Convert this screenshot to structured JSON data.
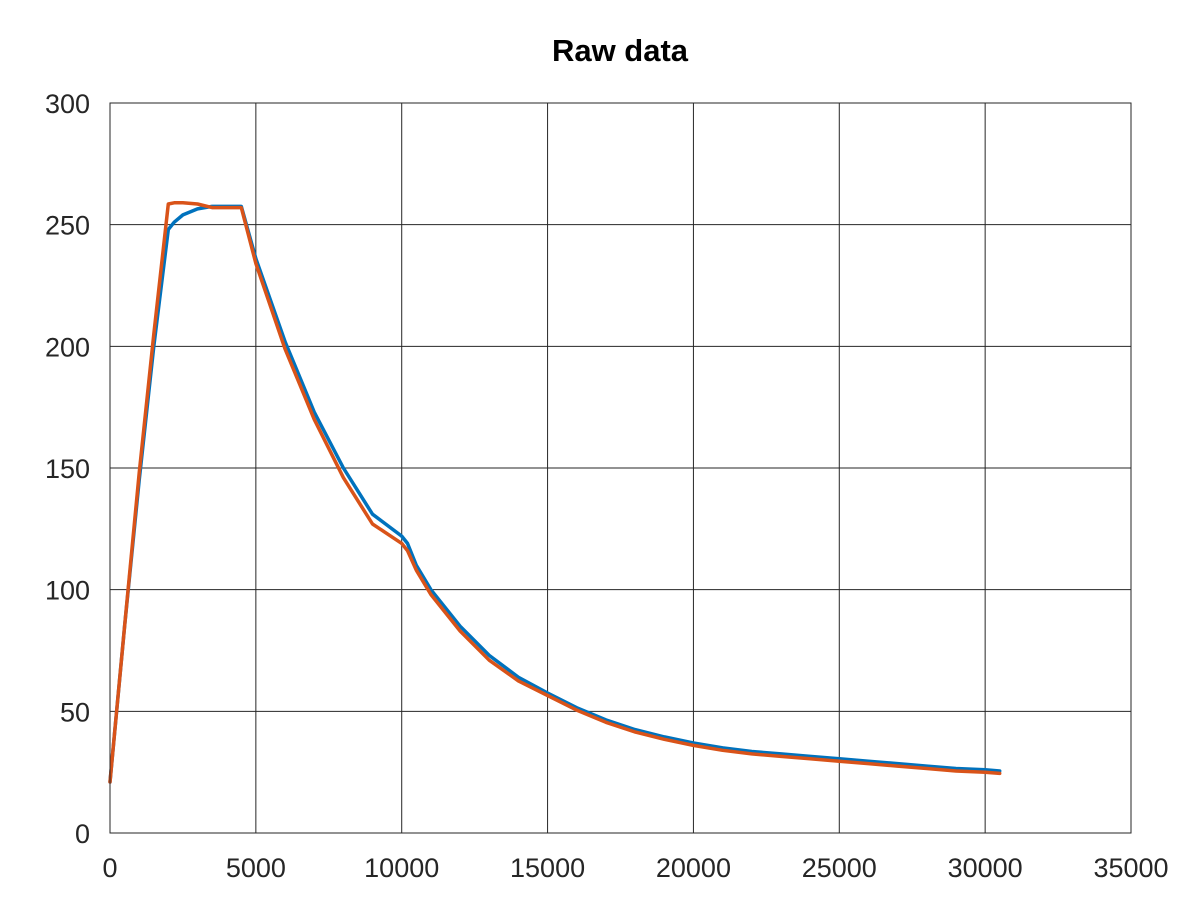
{
  "chart_data": {
    "type": "line",
    "title": "Raw data",
    "xlabel": "",
    "ylabel": "",
    "xlim": [
      0,
      35000
    ],
    "ylim": [
      0,
      300
    ],
    "x_ticks": [
      0,
      5000,
      10000,
      15000,
      20000,
      25000,
      30000,
      35000
    ],
    "y_ticks": [
      0,
      50,
      100,
      150,
      200,
      250,
      300
    ],
    "grid": true,
    "legend": "none",
    "series": [
      {
        "color": "#0072BD",
        "x": [
          0,
          500,
          1000,
          1500,
          2000,
          2200,
          2500,
          3000,
          3500,
          4000,
          4500,
          5000,
          6000,
          7000,
          8000,
          9000,
          10000,
          10200,
          10500,
          11000,
          12000,
          13000,
          14000,
          15000,
          16000,
          17000,
          18000,
          19000,
          20000,
          21000,
          22000,
          23000,
          24000,
          25000,
          26000,
          27000,
          28000,
          29000,
          30000,
          30500
        ],
        "y": [
          21,
          85,
          145,
          200,
          248,
          251,
          254,
          256.5,
          257.5,
          257.5,
          257.5,
          236,
          202,
          173,
          150,
          131,
          122,
          119,
          110,
          100,
          85,
          73,
          64,
          57.5,
          51.5,
          46.5,
          42.5,
          39.5,
          37,
          35,
          33.5,
          32.5,
          31.5,
          30.5,
          29.5,
          28.5,
          27.5,
          26.5,
          26,
          25.5
        ]
      },
      {
        "color": "#D95319",
        "x": [
          0,
          500,
          1000,
          1500,
          2000,
          2200,
          2500,
          3000,
          3500,
          4000,
          4500,
          5000,
          6000,
          7000,
          8000,
          9000,
          10000,
          10200,
          10500,
          11000,
          12000,
          13000,
          14000,
          15000,
          16000,
          17000,
          18000,
          19000,
          20000,
          21000,
          22000,
          23000,
          24000,
          25000,
          26000,
          27000,
          28000,
          29000,
          30000,
          30500
        ],
        "y": [
          21,
          85,
          148,
          205,
          258.5,
          259,
          259,
          258.5,
          257,
          257,
          257,
          234,
          199,
          170,
          146,
          127,
          119,
          116,
          108,
          98,
          83,
          71,
          62.5,
          56.5,
          50.5,
          45.5,
          41.5,
          38.5,
          36,
          34,
          32.5,
          31.5,
          30.5,
          29.5,
          28.5,
          27.5,
          26.5,
          25.5,
          25,
          24.5
        ]
      }
    ]
  }
}
